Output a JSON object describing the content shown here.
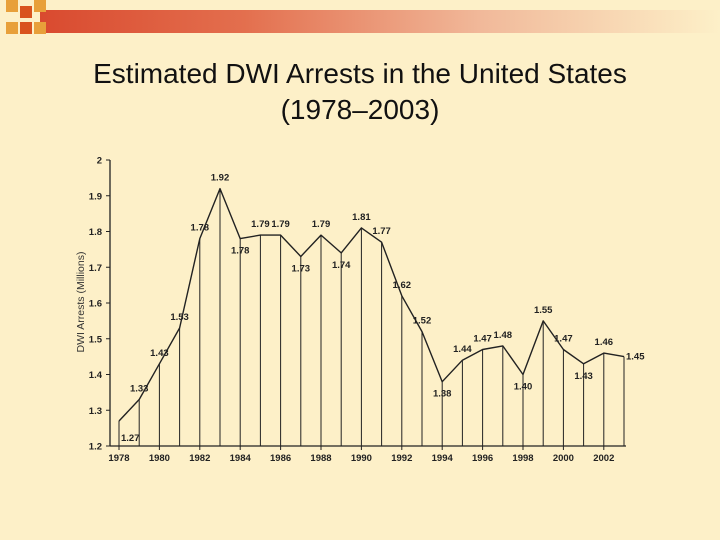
{
  "title_line1": "Estimated DWI Arrests in the United States",
  "title_line2": "(1978–2003)",
  "colors": {
    "accent": "#d94a2f",
    "square_a": "#e8a03a",
    "square_b": "#d9531f",
    "line": "#222222"
  },
  "chart_data": {
    "type": "line",
    "ylabel": "DWI Arrests (Millions)",
    "xlabel": "",
    "xlim": [
      1978,
      2003
    ],
    "ylim": [
      1.2,
      2
    ],
    "yticks": [
      1.2,
      1.3,
      1.4,
      1.5,
      1.6,
      1.7,
      1.8,
      1.9,
      2
    ],
    "ytick_labels": [
      "1.2",
      "1.3",
      "1.4",
      "1.5",
      "1.6",
      "1.7",
      "1.8",
      "1.9",
      "2"
    ],
    "xticks": [
      1978,
      1980,
      1982,
      1984,
      1986,
      1988,
      1990,
      1992,
      1994,
      1996,
      1998,
      2000,
      2002
    ],
    "xtick_labels": [
      "1978",
      "1980",
      "1982",
      "1984",
      "1986",
      "1988",
      "1990",
      "1992",
      "1994",
      "1996",
      "1998",
      "2000",
      "2002"
    ],
    "x": [
      1978,
      1979,
      1980,
      1981,
      1982,
      1983,
      1984,
      1985,
      1986,
      1987,
      1988,
      1989,
      1990,
      1991,
      1992,
      1993,
      1994,
      1995,
      1996,
      1997,
      1998,
      1999,
      2000,
      2001,
      2002,
      2003
    ],
    "values": [
      1.27,
      1.33,
      1.43,
      1.53,
      1.78,
      1.92,
      1.78,
      1.79,
      1.79,
      1.73,
      1.79,
      1.74,
      1.81,
      1.77,
      1.62,
      1.52,
      1.38,
      1.44,
      1.47,
      1.48,
      1.4,
      1.55,
      1.47,
      1.43,
      1.46,
      1.45
    ],
    "data_labels": [
      "1.27",
      "1.33",
      "1.43",
      "1.53",
      "1.78",
      "1.92",
      "1.78",
      "1.79",
      "1.79",
      "1.73",
      "1.79",
      "1.74",
      "1.81",
      "1.77",
      "1.62",
      "1.52",
      "1.38",
      "1.44",
      "1.47",
      "1.48",
      "1.40",
      "1.55",
      "1.47",
      "1.43",
      "1.46",
      "1.45"
    ],
    "drop_lines": true,
    "grid": false,
    "legend": "none"
  }
}
